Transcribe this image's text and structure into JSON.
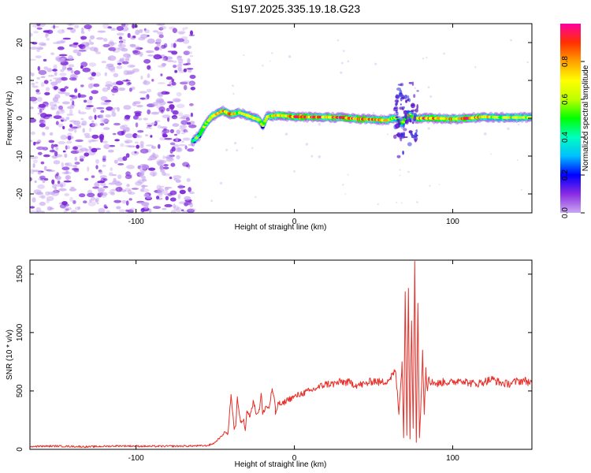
{
  "figure_title": "S197.2025.335.19.18.G23",
  "colors": {
    "snr_line": "#e8302a",
    "background": "#ffffff",
    "axis": "#000000"
  },
  "chart_data": [
    {
      "type": "heatmap",
      "name": "spectrogram",
      "xlabel": "Height of straight line (km)",
      "ylabel": "Frequency (Hz)",
      "xlim": [
        -167,
        150
      ],
      "ylim": [
        -25,
        25
      ],
      "xticks": [
        -100,
        0,
        100
      ],
      "yticks": [
        -20,
        -10,
        0,
        10,
        20
      ],
      "colorbar": {
        "label": "Normalized spectral amplitude",
        "range": [
          0,
          1
        ],
        "ticks": [
          "0.0",
          "0.2",
          "0.4",
          "0.6",
          "0.8"
        ],
        "colormap": [
          "#c9a8f0",
          "#8a2be2",
          "#0000ff",
          "#00bfff",
          "#00ffbf",
          "#00ff00",
          "#bfff00",
          "#ffff00",
          "#ffa000",
          "#ff3000",
          "#ff00a0"
        ]
      },
      "noise_region_x": [
        -167,
        -64
      ],
      "ridge": [
        {
          "x": -64,
          "f": -6.0,
          "amp": 0.45
        },
        {
          "x": -60,
          "f": -4.5,
          "amp": 0.55
        },
        {
          "x": -56,
          "f": -1.5,
          "amp": 0.6
        },
        {
          "x": -52,
          "f": 0.5,
          "amp": 0.7
        },
        {
          "x": -45,
          "f": 2.0,
          "amp": 0.75
        },
        {
          "x": -40,
          "f": 1.0,
          "amp": 0.8
        },
        {
          "x": -35,
          "f": 1.5,
          "amp": 0.65
        },
        {
          "x": -30,
          "f": 0.8,
          "amp": 0.7
        },
        {
          "x": -22,
          "f": -0.5,
          "amp": 0.65
        },
        {
          "x": -20,
          "f": -2.0,
          "amp": 0.55
        },
        {
          "x": -17,
          "f": 0.5,
          "amp": 0.7
        },
        {
          "x": -10,
          "f": 0.8,
          "amp": 0.75
        },
        {
          "x": 0,
          "f": 0.4,
          "amp": 0.9
        },
        {
          "x": 10,
          "f": 0.3,
          "amp": 0.9
        },
        {
          "x": 20,
          "f": 0.3,
          "amp": 0.85
        },
        {
          "x": 30,
          "f": 0.2,
          "amp": 0.9
        },
        {
          "x": 40,
          "f": -0.2,
          "amp": 0.85
        },
        {
          "x": 50,
          "f": -0.3,
          "amp": 0.8
        },
        {
          "x": 58,
          "f": -0.6,
          "amp": 0.75
        },
        {
          "x": 64,
          "f": 0.2,
          "amp": 0.6
        },
        {
          "x": 68,
          "f": -1.5,
          "amp": 0.55
        },
        {
          "x": 72,
          "f": 1.0,
          "amp": 0.6
        },
        {
          "x": 76,
          "f": 0.0,
          "amp": 0.75
        },
        {
          "x": 80,
          "f": 0.0,
          "amp": 0.85
        },
        {
          "x": 90,
          "f": 0.0,
          "amp": 0.85
        },
        {
          "x": 100,
          "f": -0.2,
          "amp": 0.8
        },
        {
          "x": 110,
          "f": 0.0,
          "amp": 0.9
        },
        {
          "x": 120,
          "f": 0.4,
          "amp": 0.75
        },
        {
          "x": 130,
          "f": 0.2,
          "amp": 0.6
        },
        {
          "x": 140,
          "f": 0.2,
          "amp": 0.7
        },
        {
          "x": 150,
          "f": 0.2,
          "amp": 0.6
        }
      ]
    },
    {
      "type": "line",
      "name": "snr",
      "xlabel": "Height of straight line (km)",
      "ylabel": "SNR (10 * v/v)",
      "xlim": [
        -167,
        150
      ],
      "ylim": [
        0,
        1620
      ],
      "xticks": [
        -100,
        0,
        100
      ],
      "yticks": [
        0,
        500,
        1000,
        1500
      ],
      "series": [
        {
          "name": "SNR",
          "x": [
            -167,
            -150,
            -130,
            -110,
            -90,
            -70,
            -60,
            -55,
            -52,
            -50,
            -48,
            -46,
            -44,
            -42,
            -40,
            -38,
            -37,
            -36,
            -34,
            -32,
            -31,
            -30,
            -28,
            -26,
            -24,
            -22,
            -21,
            -20,
            -18,
            -16,
            -14,
            -12,
            -12,
            -10,
            -8,
            -5,
            0,
            5,
            10,
            15,
            20,
            25,
            30,
            35,
            40,
            45,
            50,
            55,
            60,
            62,
            64,
            66,
            68,
            69,
            70,
            71,
            72,
            73,
            74,
            75,
            76,
            77,
            78,
            79,
            80,
            81,
            82,
            83,
            84,
            85,
            86,
            87,
            88,
            90,
            95,
            100,
            105,
            110,
            115,
            120,
            125,
            130,
            135,
            140,
            145,
            150
          ],
          "y": [
            25,
            28,
            22,
            30,
            26,
            28,
            30,
            32,
            45,
            60,
            90,
            110,
            150,
            130,
            470,
            170,
            200,
            450,
            230,
            260,
            160,
            330,
            280,
            420,
            300,
            340,
            480,
            300,
            370,
            350,
            520,
            360,
            300,
            400,
            380,
            420,
            450,
            480,
            500,
            530,
            560,
            560,
            580,
            570,
            550,
            560,
            590,
            570,
            600,
            640,
            660,
            300,
            750,
            100,
            1350,
            120,
            1380,
            90,
            1100,
            180,
            1610,
            60,
            1250,
            100,
            420,
            850,
            300,
            700,
            500,
            620,
            550,
            600,
            570,
            560,
            580,
            570,
            600,
            570,
            560,
            580,
            600,
            570,
            560,
            580,
            590,
            570
          ]
        }
      ]
    }
  ]
}
